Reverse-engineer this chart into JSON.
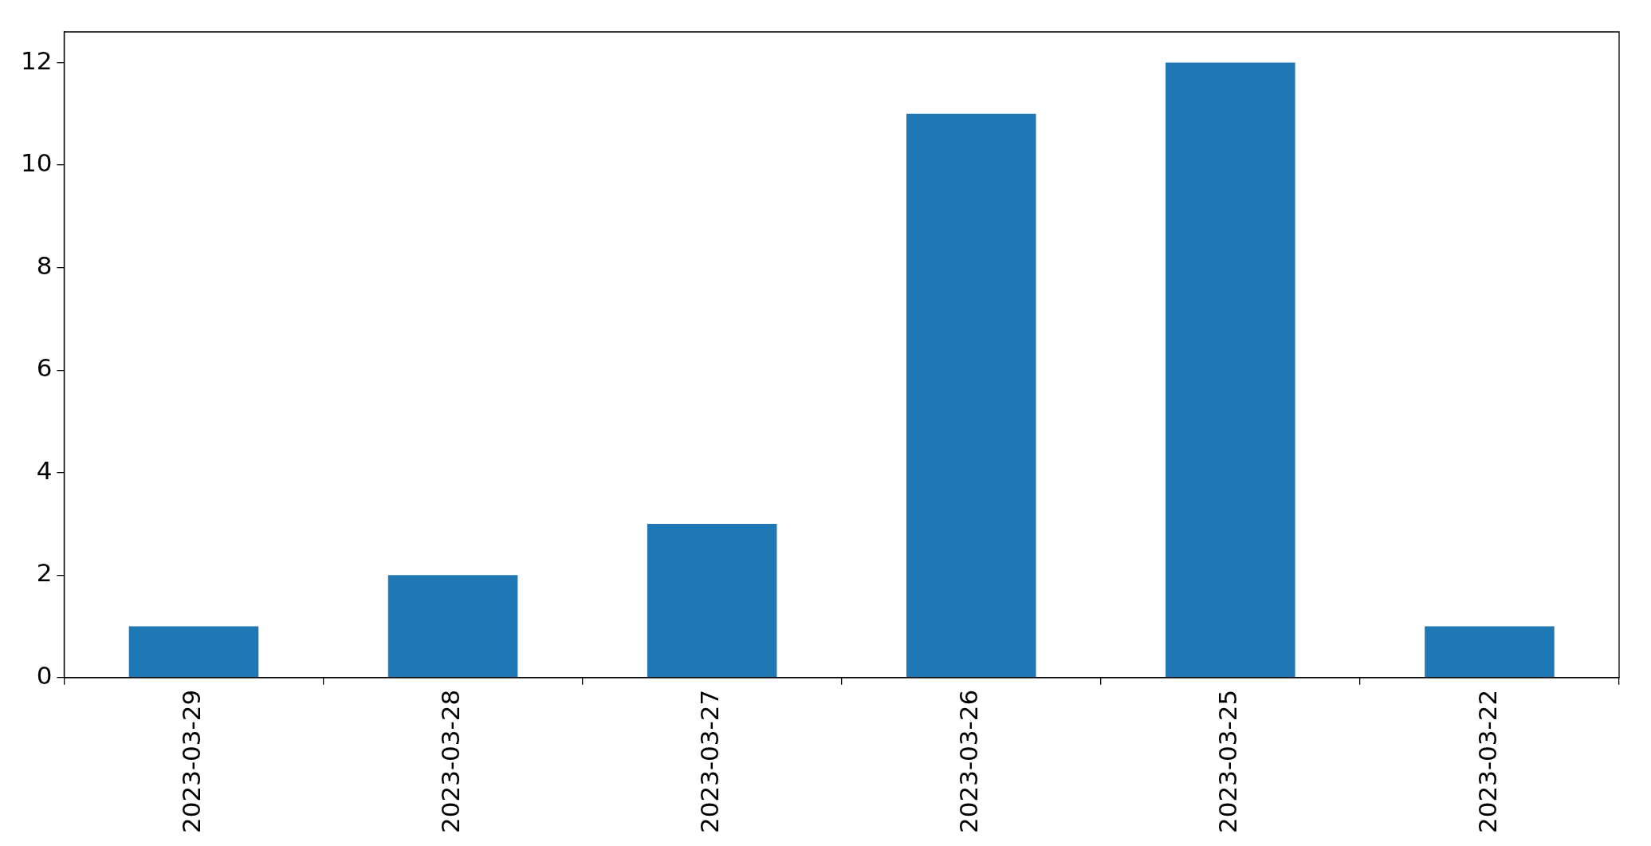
{
  "chart_data": {
    "type": "bar",
    "categories": [
      "2023-03-29",
      "2023-03-28",
      "2023-03-27",
      "2023-03-26",
      "2023-03-25",
      "2023-03-22"
    ],
    "values": [
      1,
      2,
      3,
      11,
      12,
      1
    ],
    "color": "#1f77b4",
    "ylim": [
      0,
      12.6
    ],
    "yticks": [
      0,
      2,
      4,
      6,
      8,
      10,
      12
    ],
    "grid": false,
    "legend": false
  }
}
